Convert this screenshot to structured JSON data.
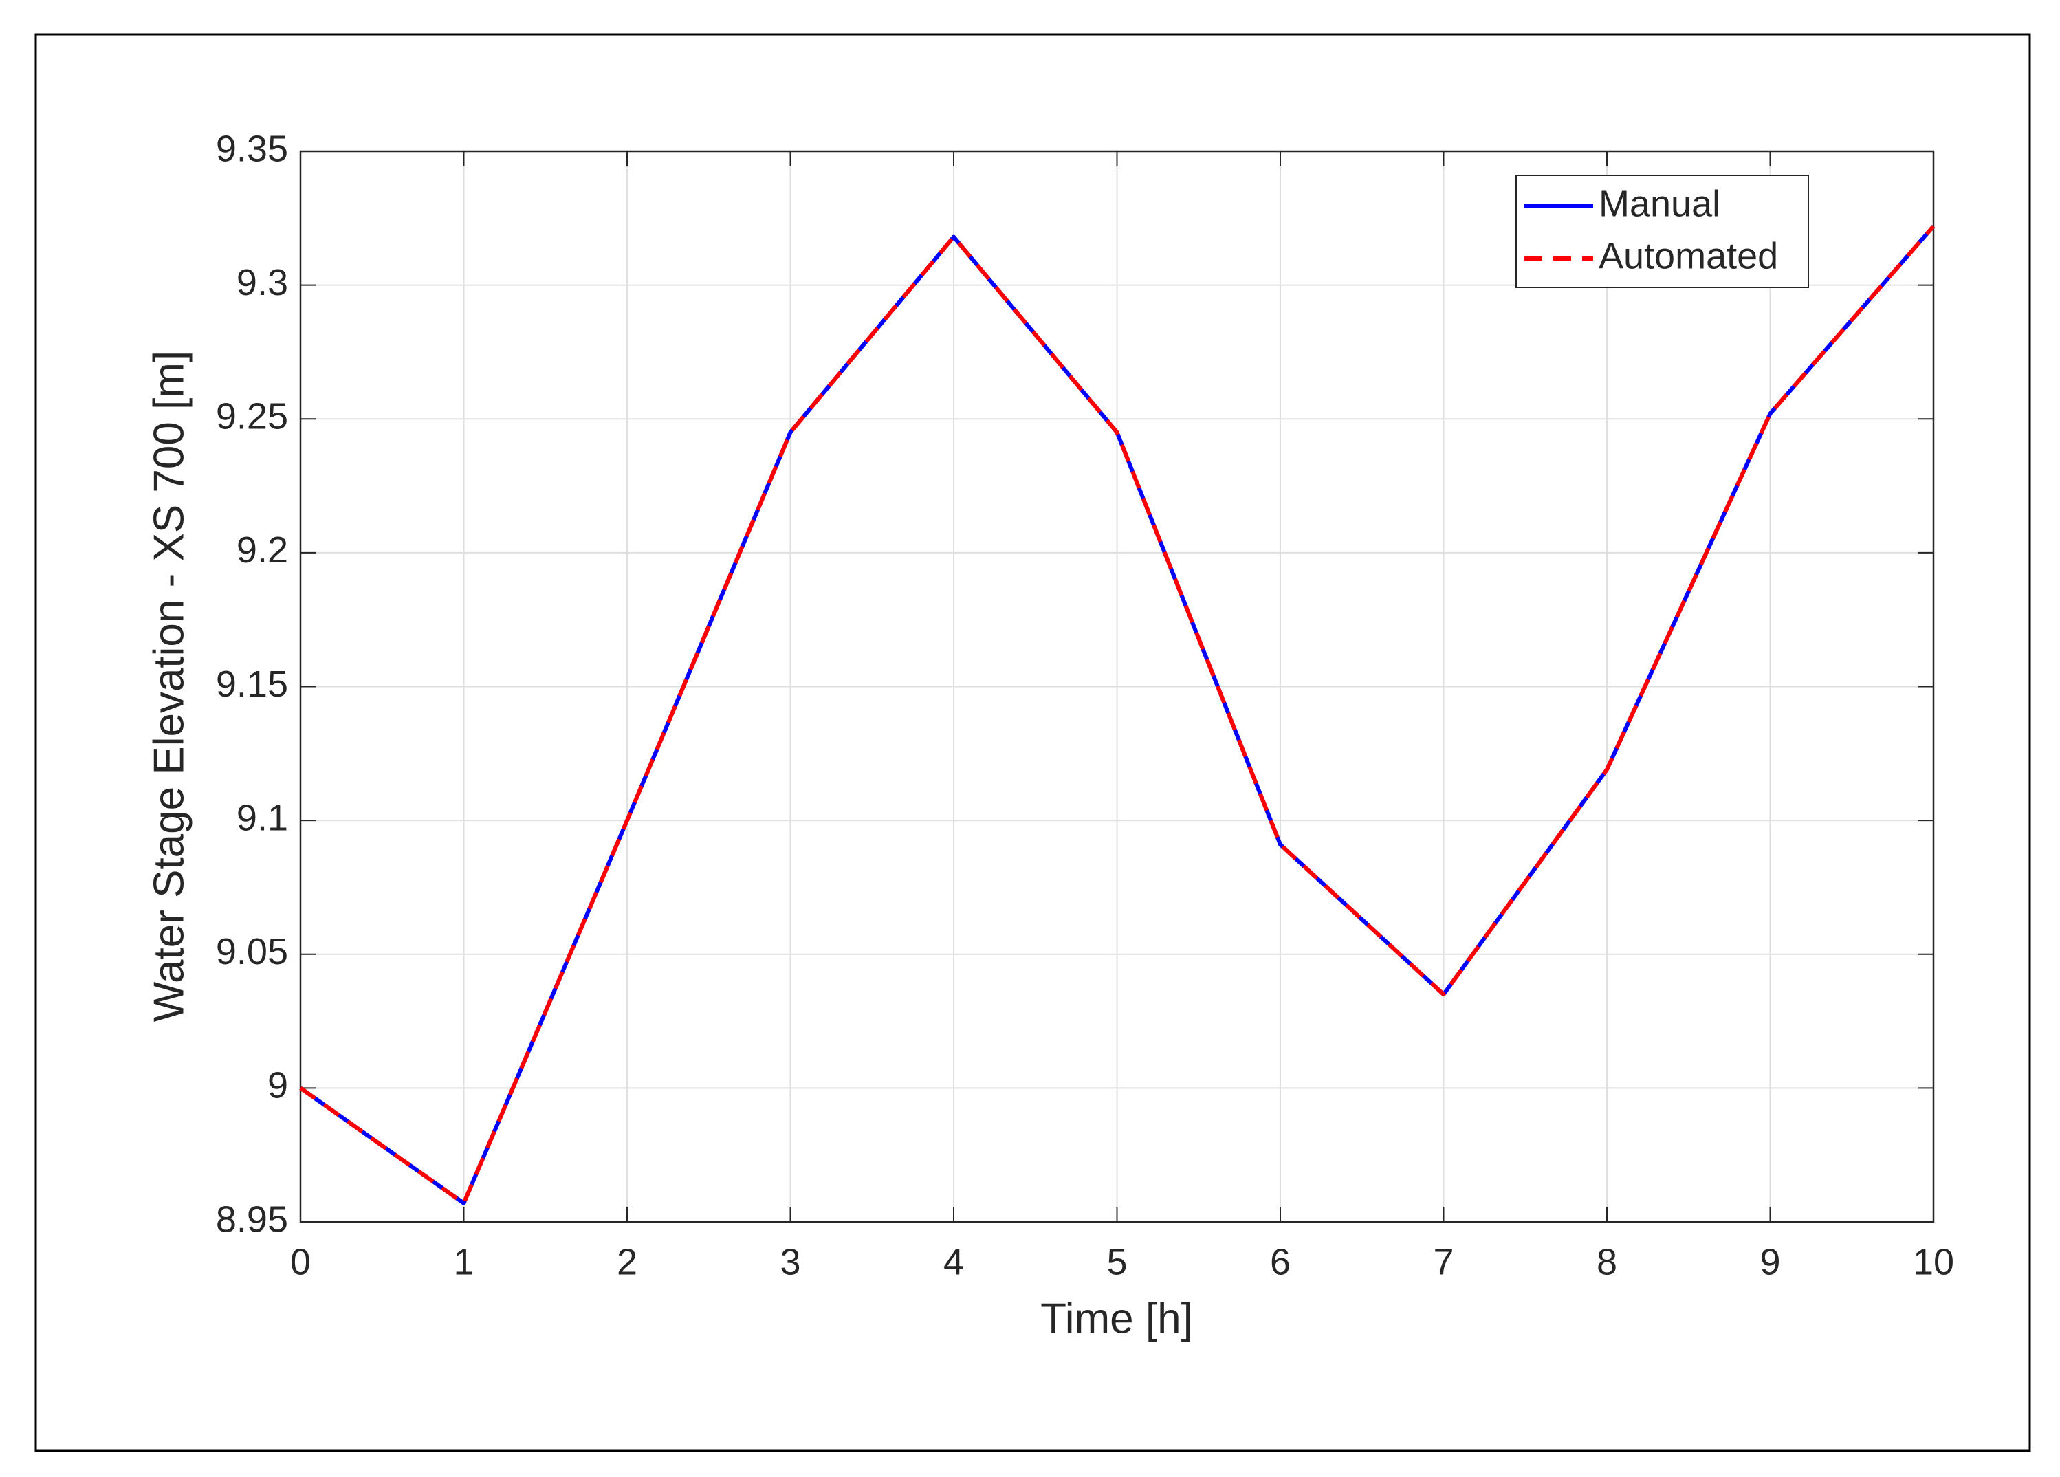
{
  "chart_data": {
    "type": "line",
    "x": [
      0,
      1,
      2,
      3,
      4,
      5,
      6,
      7,
      8,
      9,
      10
    ],
    "series": [
      {
        "name": "Manual",
        "color": "#0000ff",
        "dash": false,
        "values": [
          9.0,
          8.957,
          9.1,
          9.245,
          9.318,
          9.245,
          9.091,
          9.035,
          9.119,
          9.252,
          9.322
        ]
      },
      {
        "name": "Automated",
        "color": "#ff0000",
        "dash": true,
        "values": [
          9.0,
          8.957,
          9.1,
          9.245,
          9.318,
          9.245,
          9.091,
          9.035,
          9.119,
          9.252,
          9.322
        ]
      }
    ],
    "xlabel": "Time [h]",
    "ylabel": "Water Stage Elevation - XS 700 [m]",
    "xlim": [
      0,
      10
    ],
    "xticks": [
      0,
      1,
      2,
      3,
      4,
      5,
      6,
      7,
      8,
      9,
      10
    ],
    "ylim": [
      8.95,
      9.35
    ],
    "yticks": [
      8.95,
      9,
      9.05,
      9.1,
      9.15,
      9.2,
      9.25,
      9.3,
      9.35
    ],
    "grid": true,
    "legend": "upper right"
  }
}
